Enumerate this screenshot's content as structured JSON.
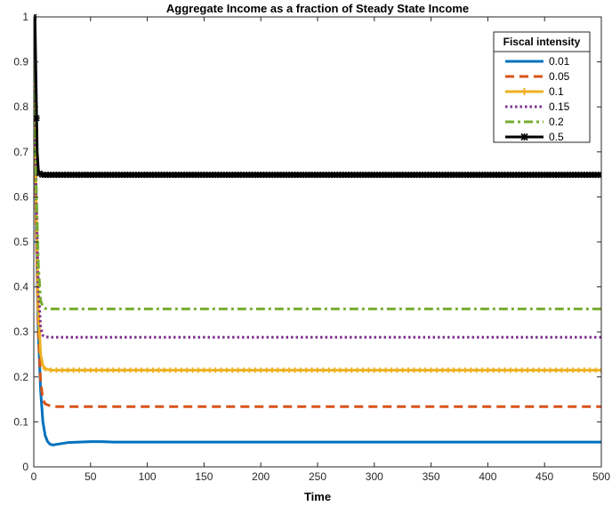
{
  "chart_data": {
    "type": "line",
    "title": "Aggregate Income as a fraction of Steady State Income",
    "xlabel": "Time",
    "ylabel": "",
    "xlim": [
      0,
      500
    ],
    "ylim": [
      0,
      1
    ],
    "xticks": [
      0,
      50,
      100,
      150,
      200,
      250,
      300,
      350,
      400,
      450,
      500
    ],
    "yticks": [
      0,
      0.1,
      0.2,
      0.3,
      0.4,
      0.5,
      0.6,
      0.7,
      0.8,
      0.9,
      1
    ],
    "grid": false,
    "legend": {
      "title": "Fiscal intensity",
      "placement": "top-right"
    },
    "series": [
      {
        "name": "0.01",
        "color": "#0072BD",
        "style": "solid",
        "x": [
          0,
          2,
          4,
          6,
          8,
          10,
          12,
          14,
          16,
          18,
          20,
          25,
          30,
          40,
          50,
          60,
          70,
          80,
          100,
          150,
          200,
          300,
          400,
          500
        ],
        "values": [
          1,
          0.55,
          0.3,
          0.17,
          0.1,
          0.07,
          0.057,
          0.051,
          0.049,
          0.049,
          0.05,
          0.052,
          0.054,
          0.055,
          0.056,
          0.056,
          0.055,
          0.055,
          0.055,
          0.055,
          0.055,
          0.055,
          0.055,
          0.055
        ]
      },
      {
        "name": "0.05",
        "color": "#D95319",
        "style": "dashed",
        "x": [
          0,
          2,
          4,
          6,
          8,
          10,
          15,
          20,
          500
        ],
        "values": [
          1,
          0.55,
          0.3,
          0.19,
          0.15,
          0.14,
          0.135,
          0.134,
          0.134
        ]
      },
      {
        "name": "0.1",
        "color": "#EDB120",
        "style": "solid-plus",
        "x": [
          0,
          2,
          4,
          6,
          8,
          10,
          15,
          20,
          500
        ],
        "values": [
          1,
          0.6,
          0.35,
          0.25,
          0.225,
          0.218,
          0.215,
          0.215,
          0.215
        ]
      },
      {
        "name": "0.15",
        "color": "#7E2F8E",
        "style": "dotted",
        "x": [
          0,
          2,
          4,
          6,
          8,
          10,
          15,
          20,
          500
        ],
        "values": [
          1,
          0.62,
          0.4,
          0.31,
          0.292,
          0.289,
          0.288,
          0.288,
          0.288
        ]
      },
      {
        "name": "0.2",
        "color": "#77AC30",
        "style": "dashdot",
        "x": [
          0,
          2,
          4,
          6,
          8,
          10,
          15,
          20,
          500
        ],
        "values": [
          1,
          0.64,
          0.45,
          0.37,
          0.355,
          0.352,
          0.351,
          0.351,
          0.351
        ]
      },
      {
        "name": "0.5",
        "color": "#000000",
        "style": "solid-star",
        "x": [
          0,
          1,
          2,
          3,
          4,
          5,
          6,
          8,
          10,
          15,
          20,
          500
        ],
        "values": [
          1,
          1,
          0.85,
          0.7,
          0.66,
          0.652,
          0.65,
          0.649,
          0.649,
          0.649,
          0.649,
          0.649
        ]
      }
    ]
  }
}
